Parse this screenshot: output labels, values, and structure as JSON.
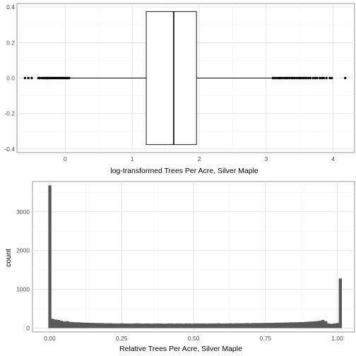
{
  "chart_data": [
    {
      "type": "boxplot",
      "title": "",
      "xlabel": "log-transformed Trees Per Acre, Silver Maple",
      "ylabel": "",
      "xlim": [
        -0.72,
        4.32
      ],
      "ylim": [
        -0.42,
        0.42
      ],
      "x_ticks": [
        0,
        1,
        2,
        3,
        4
      ],
      "x_tick_labels": [
        "0",
        "1",
        "2",
        "3",
        "4"
      ],
      "y_ticks": [
        -0.4,
        -0.2,
        0.0,
        0.2,
        0.4
      ],
      "y_tick_labels": [
        "-0.4",
        "-0.2",
        "0.0",
        "0.2",
        "0.4"
      ],
      "grid": true,
      "box": {
        "lower_whisker": -0.02,
        "q1": 1.21,
        "median": 1.62,
        "q3": 1.96,
        "upper_whisker": 3.1,
        "box_halfwidth": 0.375,
        "outliers": [
          -0.6,
          -0.55,
          -0.5,
          -0.4,
          -0.38,
          -0.35,
          -0.33,
          -0.31,
          -0.3,
          -0.28,
          -0.27,
          -0.26,
          -0.24,
          -0.22,
          -0.2,
          -0.18,
          -0.16,
          -0.14,
          -0.12,
          -0.1,
          -0.08,
          -0.06,
          -0.04,
          -0.02,
          0.0,
          0.02,
          0.04,
          0.06,
          3.1,
          3.12,
          3.15,
          3.18,
          3.2,
          3.22,
          3.25,
          3.28,
          3.3,
          3.32,
          3.35,
          3.38,
          3.4,
          3.42,
          3.45,
          3.48,
          3.5,
          3.52,
          3.55,
          3.58,
          3.6,
          3.63,
          3.66,
          3.7,
          3.73,
          3.76,
          3.8,
          3.83,
          3.86,
          3.9,
          3.95,
          3.98,
          4.18
        ]
      }
    },
    {
      "type": "histogram",
      "title": "",
      "xlabel": "Relative Trees Per Acre, Silver Maple",
      "ylabel": "count",
      "xlim": [
        -0.06,
        1.06
      ],
      "ylim": [
        -100,
        3780
      ],
      "x_ticks": [
        0.0,
        0.25,
        0.5,
        0.75,
        1.0
      ],
      "x_tick_labels": [
        "0.00",
        "0.25",
        "0.50",
        "0.75",
        "1.00"
      ],
      "y_ticks": [
        0,
        1000,
        2000,
        3000
      ],
      "y_tick_labels": [
        "0",
        "1000",
        "2000",
        "3000"
      ],
      "grid": true,
      "bar_color": "#595959",
      "bin_start": -0.005,
      "bin_width": 0.0101,
      "counts": [
        3680,
        240,
        220,
        210,
        190,
        170,
        180,
        160,
        155,
        150,
        150,
        145,
        140,
        140,
        135,
        135,
        130,
        130,
        130,
        125,
        125,
        125,
        120,
        120,
        120,
        125,
        120,
        120,
        115,
        120,
        125,
        120,
        115,
        120,
        120,
        115,
        120,
        120,
        120,
        115,
        115,
        120,
        120,
        115,
        120,
        120,
        115,
        120,
        120,
        115,
        120,
        120,
        120,
        120,
        115,
        120,
        120,
        120,
        125,
        120,
        120,
        120,
        125,
        120,
        125,
        125,
        125,
        125,
        130,
        125,
        130,
        130,
        130,
        130,
        135,
        135,
        135,
        135,
        140,
        140,
        140,
        145,
        145,
        150,
        150,
        150,
        155,
        155,
        160,
        165,
        170,
        175,
        180,
        190,
        210,
        180,
        120,
        110,
        120,
        130,
        1280
      ]
    }
  ]
}
